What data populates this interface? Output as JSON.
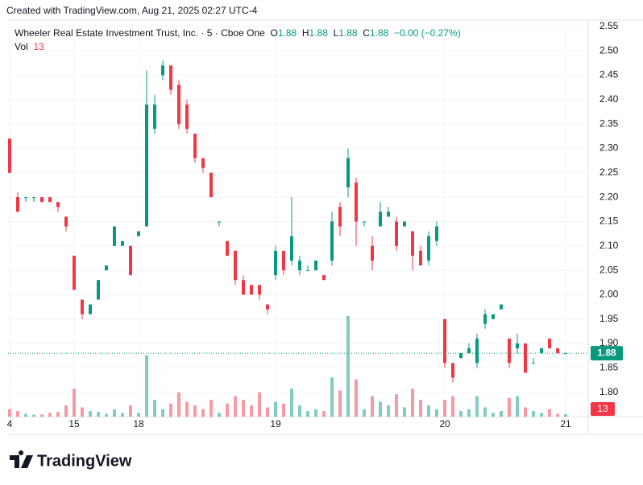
{
  "page_header": "Created with TradingView.com, Aug 21, 2025 02:27 UTC-4",
  "footer": "TradingView",
  "chart_data": {
    "type": "candlestick",
    "legend": {
      "title": "Wheeler Real Estate Investment Trust, Inc. · 5 · Cboe One",
      "o": "O",
      "h": "H",
      "l": "L",
      "c": "C",
      "change": "−0.00 (−0.27%)",
      "vol": "Vol"
    },
    "up_color": "#089981",
    "down_color": "#f23645",
    "grid": true,
    "categories": [
      "4",
      null,
      null,
      null,
      null,
      null,
      null,
      null,
      "15",
      null,
      null,
      null,
      null,
      null,
      null,
      null,
      "18",
      null,
      null,
      null,
      null,
      null,
      null,
      null,
      null,
      null,
      null,
      null,
      null,
      null,
      null,
      null,
      null,
      "19",
      null,
      null,
      null,
      null,
      null,
      null,
      null,
      null,
      null,
      null,
      null,
      null,
      null,
      null,
      null,
      null,
      null,
      null,
      null,
      null,
      "20",
      null,
      null,
      null,
      null,
      null,
      null,
      null,
      null,
      null,
      null,
      null,
      null,
      null,
      null,
      "21"
    ],
    "open": [
      2.32,
      2.2,
      2.2,
      2.2,
      2.2,
      2.2,
      2.19,
      2.16,
      2.08,
      1.99,
      1.96,
      1.99,
      2.05,
      2.1,
      2.1,
      2.1,
      2.12,
      2.14,
      2.34,
      2.45,
      2.47,
      2.43,
      2.39,
      2.33,
      2.28,
      2.25,
      2.15,
      2.11,
      2.09,
      2.03,
      2.02,
      2.02,
      1.98,
      2.04,
      2.09,
      2.07,
      2.05,
      2.05,
      2.05,
      2.04,
      2.07,
      2.18,
      2.22,
      2.23,
      2.15,
      2.1,
      2.14,
      2.16,
      2.15,
      2.14,
      2.13,
      2.09,
      2.07,
      2.11,
      1.95,
      1.86,
      1.87,
      1.88,
      1.86,
      1.94,
      1.95,
      1.97,
      1.91,
      1.89,
      1.9,
      1.86,
      1.88,
      1.91,
      1.89,
      1.88
    ],
    "high": [
      2.32,
      2.21,
      2.2,
      2.2,
      2.2,
      2.2,
      2.19,
      2.16,
      2.08,
      1.99,
      1.98,
      2.03,
      2.06,
      2.14,
      2.11,
      2.1,
      2.13,
      2.46,
      2.41,
      2.48,
      2.47,
      2.44,
      2.4,
      2.33,
      2.28,
      2.25,
      2.15,
      2.11,
      2.09,
      2.04,
      2.02,
      2.02,
      1.98,
      2.1,
      2.09,
      2.2,
      2.08,
      2.06,
      2.07,
      2.04,
      2.17,
      2.19,
      2.3,
      2.24,
      2.15,
      2.12,
      2.19,
      2.18,
      2.16,
      2.15,
      2.13,
      2.1,
      2.13,
      2.15,
      1.95,
      1.86,
      1.88,
      1.9,
      1.92,
      1.97,
      1.96,
      1.98,
      1.91,
      1.92,
      1.9,
      1.87,
      1.89,
      1.91,
      1.89,
      1.88
    ],
    "low": [
      2.25,
      2.17,
      2.19,
      2.19,
      2.19,
      2.19,
      2.17,
      2.13,
      2.01,
      1.95,
      1.96,
      1.99,
      2.05,
      2.1,
      2.1,
      2.04,
      2.12,
      2.14,
      2.33,
      2.44,
      2.41,
      2.34,
      2.33,
      2.27,
      2.25,
      2.2,
      2.14,
      2.08,
      2.02,
      2.0,
      2.0,
      1.99,
      1.96,
      2.03,
      2.04,
      2.06,
      2.04,
      2.05,
      2.05,
      2.03,
      2.06,
      2.12,
      2.2,
      2.1,
      2.14,
      2.05,
      2.14,
      2.16,
      2.09,
      2.14,
      2.05,
      2.06,
      2.06,
      2.1,
      1.85,
      1.82,
      1.87,
      1.88,
      1.85,
      1.93,
      1.95,
      1.97,
      1.85,
      1.88,
      1.84,
      1.86,
      1.88,
      1.89,
      1.88,
      1.88
    ],
    "close": [
      2.25,
      2.17,
      2.2,
      2.2,
      2.19,
      2.19,
      2.18,
      2.14,
      2.01,
      1.96,
      1.98,
      2.03,
      2.06,
      2.14,
      2.11,
      2.04,
      2.13,
      2.39,
      2.39,
      2.47,
      2.42,
      2.35,
      2.34,
      2.28,
      2.26,
      2.2,
      2.15,
      2.08,
      2.03,
      2.0,
      2.0,
      2.0,
      1.97,
      2.09,
      2.05,
      2.12,
      2.07,
      2.05,
      2.07,
      2.03,
      2.15,
      2.14,
      2.28,
      2.15,
      2.15,
      2.07,
      2.17,
      2.17,
      2.1,
      2.15,
      2.08,
      2.06,
      2.12,
      2.14,
      1.86,
      1.83,
      1.88,
      1.89,
      1.91,
      1.96,
      1.96,
      1.98,
      1.86,
      1.9,
      1.84,
      1.86,
      1.89,
      1.89,
      1.88,
      1.88
    ],
    "volume": [
      40,
      30,
      15,
      10,
      12,
      20,
      25,
      60,
      150,
      50,
      30,
      25,
      15,
      40,
      20,
      60,
      20,
      330,
      90,
      40,
      70,
      130,
      80,
      60,
      40,
      90,
      20,
      70,
      110,
      90,
      60,
      130,
      50,
      80,
      70,
      150,
      60,
      30,
      40,
      30,
      210,
      140,
      540,
      200,
      40,
      110,
      80,
      60,
      120,
      50,
      150,
      90,
      60,
      40,
      90,
      110,
      30,
      40,
      110,
      50,
      20,
      30,
      100,
      110,
      50,
      30,
      20,
      40,
      15,
      13
    ],
    "ylim": [
      1.75,
      2.563
    ],
    "yticks": [
      {
        "value": 1.8,
        "label": "1.80"
      },
      1.85,
      {
        "value": 1.9,
        "label": "1.90"
      },
      1.95,
      {
        "value": 2.0,
        "label": "2.00"
      },
      2.05,
      {
        "value": 2.1,
        "label": "2.10"
      },
      2.15,
      {
        "value": 2.2,
        "label": "2.20"
      },
      2.25,
      {
        "value": 2.3,
        "label": "2.30"
      },
      2.35,
      {
        "value": 2.4,
        "label": "2.40"
      },
      2.45,
      {
        "value": 2.5,
        "label": "2.50"
      },
      2.55
    ]
  }
}
